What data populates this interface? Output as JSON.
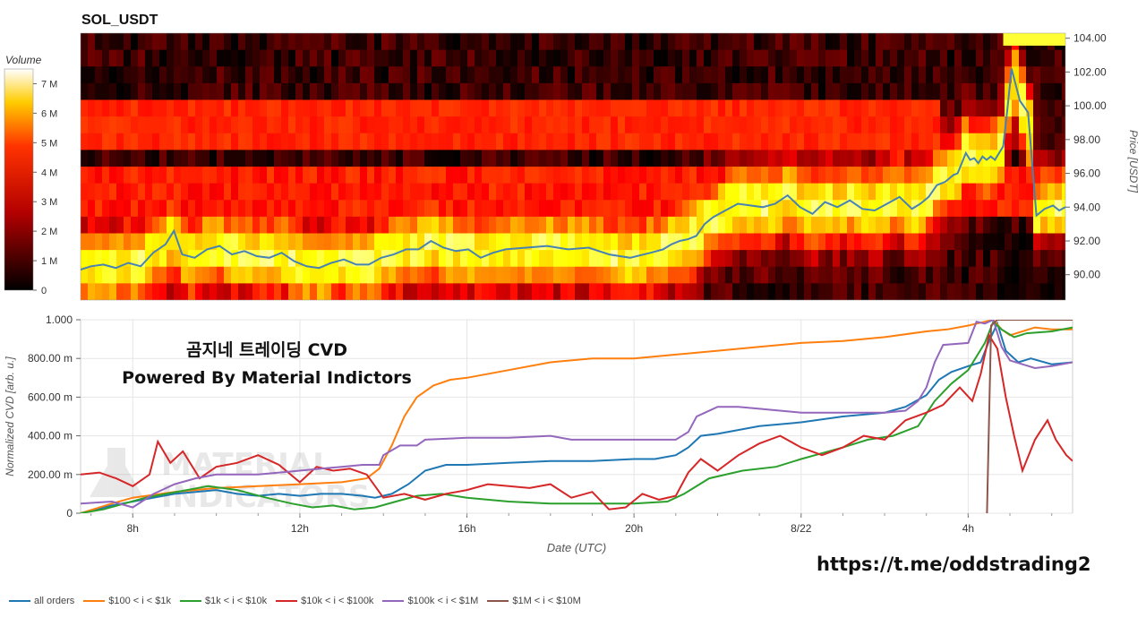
{
  "header": {
    "symbol": "SOL_USDT"
  },
  "overlay": {
    "brand_line1": "곰지네 트레이딩 CVD",
    "brand_line2": "Powered By Material Indictors",
    "watermark_line1": "MATERIAL",
    "watermark_line2": "INDICATORS",
    "telegram_link": "https://t.me/oddstrading2"
  },
  "colors": {
    "all_orders": "#1f77b4",
    "s100_1k": "#ff7f0e",
    "s1k_10k": "#2ca02c",
    "s10k_100k": "#d62728",
    "s100k_1m": "#9467bd",
    "s1m_10m": "#8c564b",
    "price_line": "#4682b4"
  },
  "chart_data": [
    {
      "type": "heatmap",
      "title": "SOL_USDT",
      "colorbar": {
        "title": "Volume",
        "ticks": [
          "0",
          "1 M",
          "2 M",
          "3 M",
          "4 M",
          "5 M",
          "6 M",
          "7 M"
        ],
        "range": [
          0,
          7500000
        ],
        "colorscale": "hot"
      },
      "y_axis": {
        "label": "Price [USDT]",
        "ticks": [
          "90.00",
          "92.00",
          "94.00",
          "96.00",
          "98.00",
          "100.00",
          "102.00",
          "104.00"
        ],
        "range": [
          88.5,
          104.3
        ]
      },
      "x_range_hours": [
        6.75,
        30.5
      ],
      "price_series": {
        "x": [
          6.75,
          7.0,
          7.3,
          7.6,
          7.9,
          8.2,
          8.5,
          8.8,
          9.0,
          9.2,
          9.5,
          9.8,
          10.1,
          10.4,
          10.7,
          11.0,
          11.3,
          11.6,
          11.9,
          12.2,
          12.5,
          12.8,
          13.1,
          13.4,
          13.7,
          14.0,
          14.3,
          14.6,
          14.9,
          15.2,
          15.5,
          15.8,
          16.1,
          16.4,
          16.7,
          17.0,
          17.5,
          18.0,
          18.5,
          19.0,
          19.5,
          20.0,
          20.5,
          20.8,
          21.0,
          21.2,
          21.4,
          21.6,
          21.8,
          22.0,
          22.3,
          22.6,
          22.9,
          23.2,
          23.5,
          23.8,
          24.1,
          24.4,
          24.7,
          25.0,
          25.3,
          25.6,
          25.9,
          26.2,
          26.5,
          26.8,
          27.0,
          27.2,
          27.4,
          27.6,
          27.8,
          27.9,
          28.0,
          28.1,
          28.2,
          28.3,
          28.4,
          28.5,
          28.6,
          28.7,
          28.8,
          28.9,
          29.0,
          29.1,
          29.2,
          29.4,
          29.6,
          29.8,
          30.0,
          30.2,
          30.35,
          30.5
        ],
        "y": [
          90.3,
          90.5,
          90.6,
          90.4,
          90.7,
          90.5,
          91.3,
          91.8,
          92.6,
          91.2,
          91.0,
          91.5,
          91.7,
          91.2,
          91.4,
          91.1,
          91.0,
          91.3,
          90.8,
          90.5,
          90.4,
          90.7,
          90.9,
          90.6,
          90.6,
          91.0,
          91.2,
          91.5,
          91.5,
          92.0,
          91.6,
          91.4,
          91.5,
          91.0,
          91.3,
          91.5,
          91.6,
          91.7,
          91.5,
          91.6,
          91.2,
          91.0,
          91.3,
          91.5,
          91.8,
          92.0,
          92.1,
          92.3,
          93.0,
          93.4,
          93.8,
          94.2,
          94.1,
          94.0,
          94.2,
          94.7,
          94.0,
          93.6,
          94.3,
          94.0,
          94.4,
          93.9,
          93.8,
          94.2,
          94.6,
          93.9,
          94.2,
          94.6,
          95.3,
          95.5,
          95.9,
          96.0,
          96.6,
          97.2,
          96.8,
          96.9,
          96.6,
          97.0,
          96.8,
          97.0,
          96.8,
          97.2,
          97.6,
          99.8,
          102.2,
          100.3,
          99.6,
          93.5,
          93.9,
          94.1,
          93.8,
          94.0,
          93.5,
          94.1,
          93.8,
          93.6,
          94.6
        ]
      }
    },
    {
      "type": "line",
      "xlabel": "Date (UTC)",
      "ylabel": "Normalized CVD [arb. u.]",
      "xlim_hours": [
        6.75,
        30.5
      ],
      "ylim": [
        0,
        1.0
      ],
      "x_ticks": [
        "8h",
        "12h",
        "16h",
        "20h",
        "8/22",
        "4h"
      ],
      "x_tick_hours": [
        8,
        12,
        16,
        20,
        24,
        28
      ],
      "y_ticks": [
        "0",
        "200.00 m",
        "400.00 m",
        "600.00 m",
        "800.00 m",
        "1.000"
      ],
      "y_tick_values": [
        0,
        0.2,
        0.4,
        0.6,
        0.8,
        1.0
      ],
      "legend": "bottom",
      "series": [
        {
          "name": "all orders",
          "color": "#1f77b4",
          "x": [
            6.75,
            7.5,
            8.0,
            8.5,
            9.0,
            9.5,
            10.0,
            10.5,
            11.0,
            11.5,
            12.0,
            12.5,
            13.0,
            13.5,
            13.8,
            14.2,
            14.6,
            15.0,
            15.5,
            16.0,
            17.0,
            18.0,
            19.0,
            20.0,
            20.5,
            21.0,
            21.3,
            21.6,
            22.0,
            23.0,
            24.0,
            25.0,
            26.0,
            26.5,
            27.0,
            27.3,
            27.6,
            28.0,
            28.3,
            28.5,
            28.7,
            28.9,
            29.2,
            29.5,
            30.0,
            30.5
          ],
          "y": [
            0.0,
            0.04,
            0.06,
            0.08,
            0.1,
            0.11,
            0.12,
            0.1,
            0.09,
            0.1,
            0.09,
            0.1,
            0.1,
            0.09,
            0.08,
            0.1,
            0.15,
            0.22,
            0.25,
            0.25,
            0.26,
            0.27,
            0.27,
            0.28,
            0.28,
            0.3,
            0.34,
            0.4,
            0.41,
            0.45,
            0.47,
            0.5,
            0.52,
            0.55,
            0.61,
            0.69,
            0.73,
            0.76,
            0.78,
            0.89,
            0.98,
            0.84,
            0.78,
            0.8,
            0.77,
            0.78
          ]
        },
        {
          "name": "$100 < i < $1k",
          "color": "#ff7f0e",
          "x": [
            6.75,
            7.5,
            8.0,
            9.0,
            10.0,
            11.0,
            12.0,
            13.0,
            13.6,
            13.9,
            14.2,
            14.5,
            14.8,
            15.2,
            15.6,
            16.0,
            17.0,
            18.0,
            19.0,
            20.0,
            21.0,
            22.0,
            23.0,
            24.0,
            25.0,
            26.0,
            27.0,
            27.5,
            28.0,
            28.4,
            28.6,
            28.8,
            29.0,
            29.3,
            29.6,
            30.0,
            30.5
          ],
          "y": [
            0.0,
            0.05,
            0.08,
            0.11,
            0.13,
            0.14,
            0.15,
            0.16,
            0.18,
            0.23,
            0.35,
            0.5,
            0.6,
            0.66,
            0.69,
            0.7,
            0.74,
            0.78,
            0.8,
            0.8,
            0.82,
            0.84,
            0.86,
            0.88,
            0.89,
            0.91,
            0.94,
            0.95,
            0.97,
            0.99,
            1.0,
            0.95,
            0.92,
            0.94,
            0.96,
            0.95,
            0.95
          ]
        },
        {
          "name": "$1k < i < $10k",
          "color": "#2ca02c",
          "x": [
            6.75,
            7.3,
            7.8,
            8.3,
            8.8,
            9.3,
            9.8,
            10.5,
            11.2,
            11.8,
            12.3,
            12.8,
            13.3,
            13.8,
            14.3,
            14.8,
            15.4,
            16.0,
            17.0,
            18.0,
            19.0,
            20.0,
            20.8,
            21.2,
            21.8,
            22.6,
            23.4,
            24.0,
            25.0,
            25.6,
            26.2,
            26.8,
            27.2,
            27.6,
            28.0,
            28.4,
            28.6,
            28.8,
            29.1,
            29.4,
            30.0,
            30.5
          ],
          "y": [
            0.0,
            0.02,
            0.05,
            0.08,
            0.1,
            0.12,
            0.14,
            0.12,
            0.08,
            0.05,
            0.03,
            0.04,
            0.02,
            0.03,
            0.06,
            0.09,
            0.1,
            0.08,
            0.06,
            0.05,
            0.05,
            0.05,
            0.06,
            0.1,
            0.18,
            0.22,
            0.24,
            0.28,
            0.34,
            0.38,
            0.4,
            0.45,
            0.58,
            0.67,
            0.74,
            0.88,
            0.99,
            0.95,
            0.91,
            0.93,
            0.94,
            0.96
          ]
        },
        {
          "name": "$10k < i < $100k",
          "color": "#d62728",
          "x": [
            6.75,
            7.2,
            7.6,
            8.0,
            8.4,
            8.6,
            8.9,
            9.2,
            9.6,
            10.0,
            10.5,
            11.0,
            11.5,
            12.0,
            12.4,
            12.8,
            13.2,
            13.6,
            14.0,
            14.5,
            15.0,
            15.5,
            16.0,
            16.5,
            17.0,
            17.5,
            18.0,
            18.5,
            19.0,
            19.4,
            19.8,
            20.2,
            20.6,
            21.0,
            21.3,
            21.6,
            22.0,
            22.5,
            23.0,
            23.5,
            24.0,
            24.5,
            25.0,
            25.5,
            26.0,
            26.5,
            27.0,
            27.4,
            27.8,
            28.1,
            28.3,
            28.5,
            28.7,
            28.9,
            29.1,
            29.3,
            29.6,
            29.9,
            30.1,
            30.35,
            30.5
          ],
          "y": [
            0.2,
            0.21,
            0.18,
            0.14,
            0.2,
            0.37,
            0.26,
            0.32,
            0.18,
            0.24,
            0.26,
            0.3,
            0.25,
            0.16,
            0.24,
            0.22,
            0.23,
            0.2,
            0.08,
            0.1,
            0.07,
            0.1,
            0.12,
            0.15,
            0.14,
            0.13,
            0.15,
            0.08,
            0.11,
            0.02,
            0.03,
            0.1,
            0.07,
            0.09,
            0.21,
            0.28,
            0.22,
            0.3,
            0.36,
            0.4,
            0.34,
            0.3,
            0.34,
            0.4,
            0.38,
            0.48,
            0.52,
            0.56,
            0.65,
            0.58,
            0.72,
            0.92,
            0.85,
            0.6,
            0.4,
            0.22,
            0.38,
            0.48,
            0.38,
            0.3,
            0.27
          ]
        },
        {
          "name": "$100k < i < $1M",
          "color": "#9467bd",
          "x": [
            6.75,
            7.5,
            8.0,
            8.5,
            9.0,
            9.5,
            10.0,
            10.5,
            11.0,
            11.5,
            12.0,
            12.5,
            13.0,
            13.5,
            13.9,
            14.0,
            14.4,
            14.8,
            15.0,
            16.0,
            17.0,
            18.0,
            18.5,
            19.0,
            20.0,
            20.5,
            21.0,
            21.3,
            21.5,
            21.7,
            22.0,
            22.5,
            23.0,
            24.0,
            25.0,
            26.0,
            26.5,
            26.8,
            27.0,
            27.2,
            27.4,
            28.0,
            28.2,
            28.4,
            28.6,
            28.8,
            29.0,
            29.3,
            29.6,
            30.0,
            30.5
          ],
          "y": [
            0.05,
            0.06,
            0.03,
            0.1,
            0.15,
            0.18,
            0.2,
            0.2,
            0.2,
            0.21,
            0.22,
            0.23,
            0.24,
            0.25,
            0.25,
            0.3,
            0.35,
            0.35,
            0.38,
            0.39,
            0.39,
            0.4,
            0.38,
            0.38,
            0.38,
            0.38,
            0.38,
            0.42,
            0.5,
            0.52,
            0.55,
            0.55,
            0.54,
            0.52,
            0.52,
            0.52,
            0.53,
            0.58,
            0.65,
            0.78,
            0.87,
            0.88,
            0.99,
            0.98,
            1.0,
            0.86,
            0.79,
            0.77,
            0.75,
            0.76,
            0.78
          ]
        },
        {
          "name": "$1M < i < $10M",
          "color": "#8c564b",
          "x": [
            28.45,
            28.55,
            28.7,
            28.9,
            29.0,
            29.5,
            30.0,
            30.5
          ],
          "y": [
            0.0,
            0.97,
            1.0,
            1.0,
            1.0,
            1.0,
            1.0,
            1.0
          ]
        }
      ]
    }
  ]
}
